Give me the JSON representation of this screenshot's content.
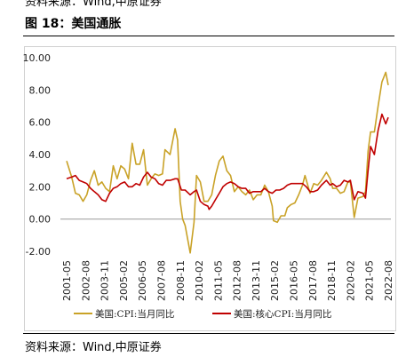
{
  "header": {
    "source_top": "资料来源：Wind,中原证券",
    "figure_title": "图 18：美国通胀"
  },
  "footer": {
    "source_bottom": "资料来源：Wind,中原证券"
  },
  "colors": {
    "cpi": "#C9A227",
    "core_cpi": "#C00000",
    "zero_line": "#999999",
    "frame": "#D0D0D0"
  },
  "chart_data": {
    "type": "line",
    "title": "",
    "xlabel": "",
    "ylabel": "",
    "ylim": [
      -2,
      10
    ],
    "yticks": [
      "10.00",
      "8.00",
      "6.00",
      "4.00",
      "2.00",
      "0.00",
      "-2.00"
    ],
    "yticks_values": [
      10,
      8,
      6,
      4,
      2,
      0,
      -2
    ],
    "xlim": [
      "2001-05",
      "2022-08"
    ],
    "xticks": [
      "2001-05",
      "2002-08",
      "2003-11",
      "2005-02",
      "2006-05",
      "2007-08",
      "2008-11",
      "2010-02",
      "2011-05",
      "2012-08",
      "2013-11",
      "2015-02",
      "2016-05",
      "2017-08",
      "2018-11",
      "2020-02",
      "2021-05",
      "2022-08"
    ],
    "grid": false,
    "legend": "bottom",
    "series": [
      {
        "name": "美国:CPI:当月同比",
        "x": [
          "2001-05",
          "2001-09",
          "2001-12",
          "2002-03",
          "2002-06",
          "2002-09",
          "2002-12",
          "2003-03",
          "2003-06",
          "2003-09",
          "2003-12",
          "2004-03",
          "2004-06",
          "2004-09",
          "2004-12",
          "2005-03",
          "2005-06",
          "2005-09",
          "2005-12",
          "2006-03",
          "2006-06",
          "2006-09",
          "2006-12",
          "2007-03",
          "2007-06",
          "2007-09",
          "2007-11",
          "2008-03",
          "2008-07",
          "2008-09",
          "2008-11",
          "2009-01",
          "2009-03",
          "2009-07",
          "2009-10",
          "2009-12",
          "2010-03",
          "2010-06",
          "2010-09",
          "2010-12",
          "2011-03",
          "2011-06",
          "2011-09",
          "2011-12",
          "2012-03",
          "2012-06",
          "2012-09",
          "2012-12",
          "2013-03",
          "2013-06",
          "2013-09",
          "2013-12",
          "2014-03",
          "2014-06",
          "2014-09",
          "2014-12",
          "2015-01",
          "2015-04",
          "2015-07",
          "2015-10",
          "2015-12",
          "2016-03",
          "2016-06",
          "2016-09",
          "2016-12",
          "2017-02",
          "2017-06",
          "2017-09",
          "2017-12",
          "2018-03",
          "2018-07",
          "2018-10",
          "2018-12",
          "2019-03",
          "2019-06",
          "2019-09",
          "2019-12",
          "2020-02",
          "2020-05",
          "2020-08",
          "2020-12",
          "2021-02",
          "2021-04",
          "2021-06",
          "2021-09",
          "2021-12",
          "2022-03",
          "2022-06",
          "2022-08"
        ],
        "y": [
          3.6,
          2.6,
          1.6,
          1.5,
          1.1,
          1.5,
          2.4,
          3.0,
          2.1,
          2.3,
          1.9,
          1.7,
          3.3,
          2.5,
          3.3,
          3.1,
          2.5,
          4.7,
          3.4,
          3.4,
          4.3,
          2.1,
          2.5,
          2.8,
          2.7,
          2.8,
          4.3,
          4.0,
          5.6,
          4.9,
          1.1,
          0.0,
          -0.4,
          -2.1,
          -0.2,
          2.7,
          2.3,
          1.1,
          1.1,
          1.5,
          2.7,
          3.6,
          3.9,
          3.0,
          2.7,
          1.7,
          2.0,
          1.7,
          1.5,
          1.8,
          1.2,
          1.5,
          1.5,
          2.1,
          1.7,
          0.8,
          -0.1,
          -0.2,
          0.2,
          0.2,
          0.7,
          0.9,
          1.0,
          1.5,
          2.1,
          2.7,
          1.6,
          2.2,
          2.1,
          2.4,
          2.9,
          2.5,
          1.9,
          1.9,
          1.6,
          1.7,
          2.3,
          2.3,
          0.1,
          1.3,
          1.4,
          1.7,
          4.2,
          5.4,
          5.4,
          7.0,
          8.5,
          9.1,
          8.3
        ]
      },
      {
        "name": "美国:核心CPI:当月同比",
        "x": [
          "2001-05",
          "2001-09",
          "2001-12",
          "2002-03",
          "2002-06",
          "2002-09",
          "2002-12",
          "2003-03",
          "2003-06",
          "2003-09",
          "2003-12",
          "2004-03",
          "2004-06",
          "2004-09",
          "2004-12",
          "2005-03",
          "2005-06",
          "2005-09",
          "2005-12",
          "2006-03",
          "2006-06",
          "2006-09",
          "2006-12",
          "2007-03",
          "2007-06",
          "2007-09",
          "2007-12",
          "2008-03",
          "2008-07",
          "2008-09",
          "2008-12",
          "2009-03",
          "2009-07",
          "2009-10",
          "2009-12",
          "2010-03",
          "2010-06",
          "2010-09",
          "2010-10",
          "2010-12",
          "2011-03",
          "2011-06",
          "2011-09",
          "2011-12",
          "2012-03",
          "2012-06",
          "2012-09",
          "2012-12",
          "2013-03",
          "2013-06",
          "2013-09",
          "2013-12",
          "2014-03",
          "2014-06",
          "2014-09",
          "2014-12",
          "2015-03",
          "2015-06",
          "2015-09",
          "2015-12",
          "2016-03",
          "2016-06",
          "2016-09",
          "2016-12",
          "2017-03",
          "2017-06",
          "2017-09",
          "2017-12",
          "2018-03",
          "2018-07",
          "2018-10",
          "2018-12",
          "2019-03",
          "2019-06",
          "2019-09",
          "2019-12",
          "2020-02",
          "2020-05",
          "2020-08",
          "2020-12",
          "2021-02",
          "2021-04",
          "2021-06",
          "2021-09",
          "2021-12",
          "2022-03",
          "2022-06",
          "2022-08"
        ],
        "y": [
          2.5,
          2.6,
          2.7,
          2.4,
          2.3,
          2.2,
          1.9,
          1.7,
          1.5,
          1.2,
          1.1,
          1.6,
          1.9,
          2.0,
          2.2,
          2.3,
          2.0,
          2.0,
          2.2,
          2.1,
          2.6,
          2.9,
          2.6,
          2.5,
          2.2,
          2.1,
          2.4,
          2.4,
          2.5,
          2.5,
          1.8,
          1.8,
          1.5,
          1.7,
          1.8,
          1.1,
          0.9,
          0.8,
          0.6,
          0.8,
          1.2,
          1.6,
          2.0,
          2.2,
          2.3,
          2.2,
          2.0,
          1.9,
          1.9,
          1.6,
          1.7,
          1.7,
          1.7,
          1.9,
          1.7,
          1.6,
          1.8,
          1.8,
          1.9,
          2.1,
          2.2,
          2.2,
          2.2,
          2.2,
          2.0,
          1.7,
          1.7,
          1.8,
          2.1,
          2.4,
          2.1,
          2.2,
          2.0,
          2.1,
          2.4,
          2.3,
          2.4,
          1.2,
          1.7,
          1.6,
          1.3,
          3.0,
          4.5,
          4.0,
          5.5,
          6.5,
          5.9,
          6.3
        ]
      }
    ]
  }
}
